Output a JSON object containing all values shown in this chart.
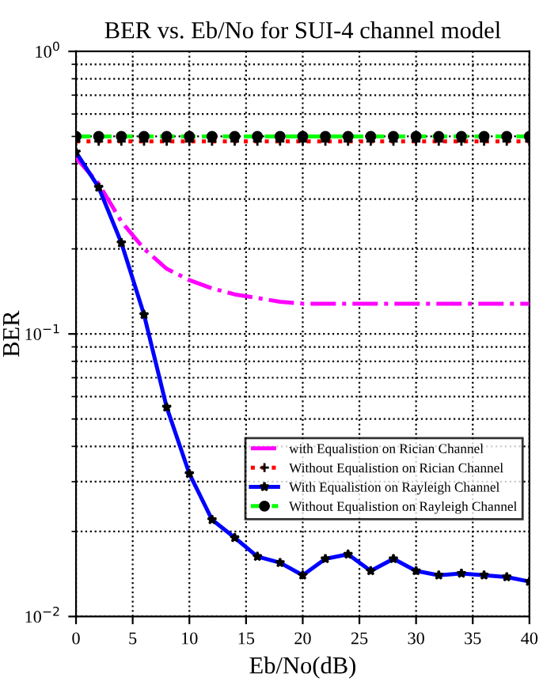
{
  "chart_data": {
    "type": "line",
    "title": "BER vs. Eb/No for SUI-4 channel model",
    "xlabel": "Eb/No(dB)",
    "ylabel": "BER",
    "log": "y",
    "grid": true,
    "legend": "bottom right",
    "xlim": [
      0,
      40
    ],
    "xticks": [
      0,
      5,
      10,
      15,
      20,
      25,
      30,
      35,
      40
    ],
    "ylim": [
      0.01,
      1
    ],
    "yticks": [
      {
        "value": 0.01,
        "label": "10$^{−2}$"
      },
      {
        "value": 0.1,
        "label": "10$^{−1}$"
      },
      {
        "value": 1,
        "label": "10$^{0}$"
      }
    ],
    "x": [
      0,
      2,
      4,
      6,
      8,
      10,
      12,
      14,
      16,
      18,
      20,
      22,
      24,
      26,
      28,
      30,
      32,
      34,
      36,
      38,
      40
    ],
    "series": [
      {
        "name": "with Equalistion on Rician Channel",
        "color": "#ff00ff",
        "line_style": "dashdot",
        "marker": "none",
        "values": [
          0.42,
          0.34,
          0.25,
          0.2,
          0.17,
          0.155,
          0.145,
          0.138,
          0.134,
          0.13,
          0.128,
          0.128,
          0.128,
          0.128,
          0.128,
          0.128,
          0.128,
          0.128,
          0.128,
          0.128,
          0.128
        ]
      },
      {
        "name": "Without Equalistion on Rician Channel",
        "color": "#ff0000",
        "line_style": "dotted",
        "marker": "cross",
        "values": [
          0.48,
          0.48,
          0.48,
          0.48,
          0.48,
          0.48,
          0.48,
          0.48,
          0.48,
          0.48,
          0.48,
          0.48,
          0.48,
          0.48,
          0.48,
          0.48,
          0.48,
          0.48,
          0.48,
          0.48,
          0.48
        ]
      },
      {
        "name": "With Equalistion on Rayleigh Channel",
        "color": "#0000ff",
        "line_style": "solid",
        "marker": "star",
        "values": [
          0.44,
          0.33,
          0.21,
          0.117,
          0.055,
          0.032,
          0.022,
          0.019,
          0.0163,
          0.0155,
          0.014,
          0.016,
          0.0166,
          0.0145,
          0.016,
          0.0145,
          0.014,
          0.0142,
          0.014,
          0.0138,
          0.0133
        ]
      },
      {
        "name": "Without Equalistion on Rayleigh Channel",
        "color": "#00ff00",
        "line_style": "dashed",
        "marker": "circle",
        "values": [
          0.5,
          0.5,
          0.5,
          0.5,
          0.5,
          0.5,
          0.5,
          0.5,
          0.5,
          0.5,
          0.5,
          0.5,
          0.5,
          0.5,
          0.5,
          0.5,
          0.5,
          0.5,
          0.5,
          0.5,
          0.5
        ]
      }
    ]
  }
}
